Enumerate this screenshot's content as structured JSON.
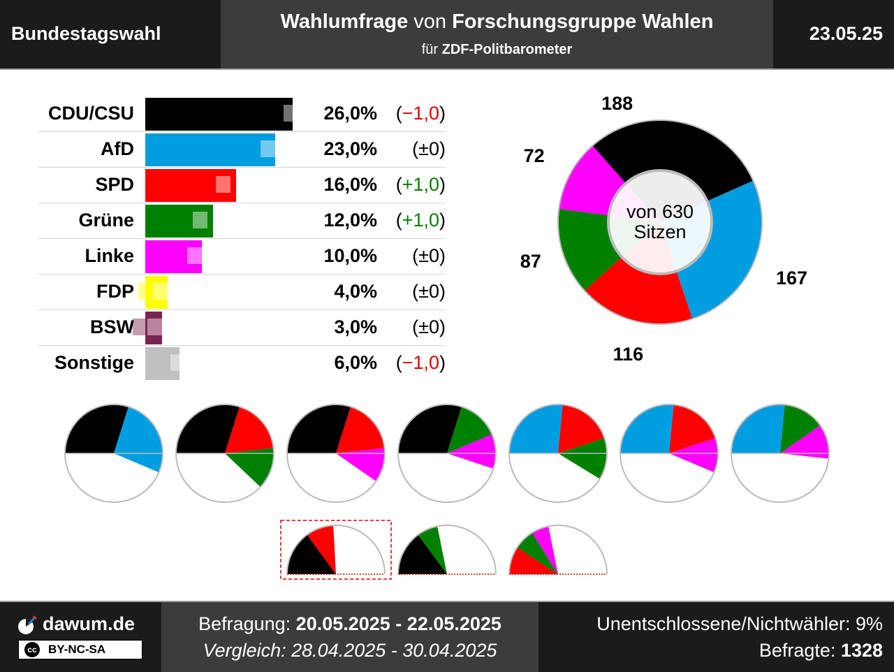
{
  "header": {
    "left": "Bundestagswahl",
    "title_part1": "Wahlumfrage",
    "title_part2": " von ",
    "title_part3": "Forschungsgruppe Wahlen",
    "subtitle_part1": "für ",
    "subtitle_part2": "ZDF-Politbarometer",
    "date": "23.05.25"
  },
  "chart_data": [
    {
      "type": "bar",
      "orientation": "horizontal",
      "categories": [
        "CDU/CSU",
        "AfD",
        "SPD",
        "Grüne",
        "Linke",
        "FDP",
        "BSW",
        "Sonstige"
      ],
      "values": [
        26.0,
        23.0,
        16.0,
        12.0,
        10.0,
        4.0,
        3.0,
        6.0
      ],
      "previous_values": [
        27.0,
        23.0,
        15.0,
        11.0,
        10.0,
        4.0,
        3.0,
        7.0
      ],
      "value_labels": [
        "26,0%",
        "23,0%",
        "16,0%",
        "12,0%",
        "10,0%",
        "4,0%",
        "3,0%",
        "6,0%"
      ],
      "change_labels": [
        "(−1,0)",
        "(±0)",
        "(+1,0)",
        "(+1,0)",
        "(±0)",
        "(±0)",
        "(±0)",
        "(−1,0)"
      ],
      "change_direction": [
        "down",
        "none",
        "up",
        "up",
        "none",
        "none",
        "none",
        "down"
      ],
      "colors": [
        "#000000",
        "#009ee0",
        "#ff0000",
        "#008000",
        "#ff00ff",
        "#ffff00",
        "#7b2450",
        "#c0c0c0"
      ],
      "xlim": [
        0,
        40
      ]
    },
    {
      "type": "pie",
      "style": "donut",
      "center_text": [
        "von 630",
        "Sitzen"
      ],
      "slices": [
        {
          "party": "CDU/CSU",
          "seats": 188,
          "label": "188",
          "color": "#000000"
        },
        {
          "party": "AfD",
          "seats": 167,
          "label": "167",
          "color": "#009ee0"
        },
        {
          "party": "SPD",
          "seats": 116,
          "label": "116",
          "color": "#ff0000"
        },
        {
          "party": "Grüne",
          "seats": 87,
          "label": "87",
          "color": "#008000"
        },
        {
          "party": "Linke",
          "seats": 72,
          "label": "72",
          "color": "#ff00ff"
        }
      ],
      "total": 630
    },
    {
      "type": "pie",
      "style": "coalition-pies",
      "total": 630,
      "rows": [
        [
          {
            "parties": [
              "CDU/CSU",
              "AfD"
            ],
            "highlight": false
          },
          {
            "parties": [
              "CDU/CSU",
              "SPD",
              "Grüne"
            ],
            "highlight": false
          },
          {
            "parties": [
              "CDU/CSU",
              "SPD",
              "Linke"
            ],
            "highlight": false
          },
          {
            "parties": [
              "CDU/CSU",
              "Grüne",
              "Linke"
            ],
            "highlight": false
          },
          {
            "parties": [
              "AfD",
              "SPD",
              "Grüne"
            ],
            "highlight": false
          },
          {
            "parties": [
              "AfD",
              "SPD",
              "Linke"
            ],
            "highlight": false
          },
          {
            "parties": [
              "AfD",
              "Grüne",
              "Linke"
            ],
            "highlight": false
          }
        ],
        [
          {
            "parties": [
              "CDU/CSU",
              "SPD"
            ],
            "highlight": true
          },
          {
            "parties": [
              "CDU/CSU",
              "Grüne"
            ],
            "highlight": false
          },
          {
            "parties": [
              "SPD",
              "Grüne",
              "Linke"
            ],
            "highlight": false
          }
        ]
      ]
    }
  ],
  "footer": {
    "site": "dawum.de",
    "license": "BY-NC-SA",
    "license_icon": "cc",
    "survey_label": "Befragung: ",
    "survey_range": "20.05.2025 - 22.05.2025",
    "compare": "Vergleich: 28.04.2025 - 30.04.2025",
    "undecided": "Unentschlossene/Nichtwähler: 9%",
    "respondents_label": "Befragte: ",
    "respondents": "1328"
  }
}
